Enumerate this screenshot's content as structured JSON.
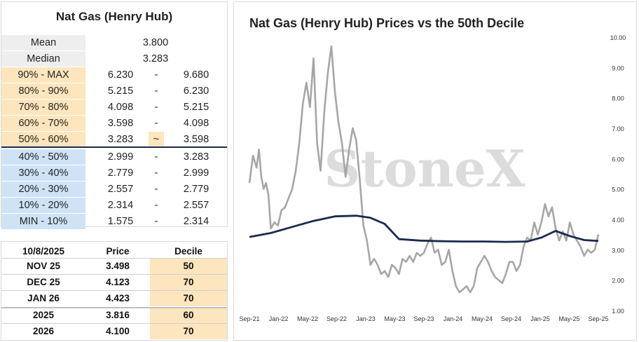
{
  "decile_table": {
    "title": "Nat Gas (Henry Hub)",
    "stats": [
      {
        "label": "Mean",
        "value": "3.800"
      },
      {
        "label": "Median",
        "value": "3.283"
      }
    ],
    "deciles": [
      {
        "label": "90% - MAX",
        "low": "6.230",
        "sep": "-",
        "high": "9.680",
        "zone": "orange"
      },
      {
        "label": "80% - 90%",
        "low": "5.215",
        "sep": "-",
        "high": "6.230",
        "zone": "orange"
      },
      {
        "label": "70% - 80%",
        "low": "4.098",
        "sep": "-",
        "high": "5.215",
        "zone": "orange"
      },
      {
        "label": "60% - 70%",
        "low": "3.598",
        "sep": "-",
        "high": "4.098",
        "zone": "orange"
      },
      {
        "label": "50% - 60%",
        "low": "3.283",
        "sep": "~",
        "high": "3.598",
        "zone": "orange",
        "current": true
      },
      {
        "label": "40% - 50%",
        "low": "2.999",
        "sep": "-",
        "high": "3.283",
        "zone": "blue"
      },
      {
        "label": "30% - 40%",
        "low": "2.779",
        "sep": "-",
        "high": "2.999",
        "zone": "blue"
      },
      {
        "label": "20% - 30%",
        "low": "2.557",
        "sep": "-",
        "high": "2.779",
        "zone": "blue"
      },
      {
        "label": "10% - 20%",
        "low": "2.314",
        "sep": "-",
        "high": "2.557",
        "zone": "blue"
      },
      {
        "label": "MIN - 10%",
        "low": "1.575",
        "sep": "-",
        "high": "2.314",
        "zone": "blue"
      }
    ]
  },
  "price_table": {
    "headers": [
      "10/8/2025",
      "Price",
      "Decile"
    ],
    "rows": [
      {
        "contract": "NOV 25",
        "price": "3.498",
        "decile": "50"
      },
      {
        "contract": "DEC 25",
        "price": "4.123",
        "decile": "70"
      },
      {
        "contract": "JAN 26",
        "price": "4.423",
        "decile": "70"
      },
      {
        "contract": "2025",
        "price": "3.816",
        "decile": "60"
      },
      {
        "contract": "2026",
        "price": "4.100",
        "decile": "70"
      }
    ]
  },
  "colors": {
    "orange_fill": "#fde5bd",
    "blue_fill": "#cfe3f6",
    "price_line": "#a6a6a6",
    "median_line": "#1a2b4c",
    "watermark": "#dcdcdc"
  },
  "chart_data": {
    "type": "line",
    "title": "Nat Gas (Henry Hub) Prices vs the 50th Decile",
    "watermark": "StoneX",
    "x_tick_labels": [
      "Sep-21",
      "Jan-22",
      "May-22",
      "Sep-22",
      "Jan-23",
      "May-23",
      "Sep-23",
      "Jan-24",
      "May-24",
      "Sep-24",
      "Jan-25",
      "May-25",
      "Sep-25"
    ],
    "x_range": [
      "2021-09",
      "2025-10"
    ],
    "y_tick_labels": [
      "1.00",
      "2.00",
      "3.00",
      "4.00",
      "5.00",
      "6.00",
      "7.00",
      "8.00",
      "9.00",
      "10.00"
    ],
    "ylim": [
      1.0,
      10.0
    ],
    "y_axis_side": "right",
    "grid": false,
    "series": [
      {
        "style": "price",
        "points": [
          [
            "2021-09",
            5.2
          ],
          [
            "2021-09",
            6.1
          ],
          [
            "2021-10",
            5.7
          ],
          [
            "2021-10",
            6.3
          ],
          [
            "2021-10",
            5.4
          ],
          [
            "2021-11",
            5.0
          ],
          [
            "2021-11",
            5.2
          ],
          [
            "2021-11",
            4.8
          ],
          [
            "2021-12",
            3.7
          ],
          [
            "2021-12",
            3.9
          ],
          [
            "2022-01",
            3.8
          ],
          [
            "2022-01",
            4.3
          ],
          [
            "2022-02",
            4.4
          ],
          [
            "2022-02",
            4.7
          ],
          [
            "2022-03",
            5.0
          ],
          [
            "2022-03",
            5.6
          ],
          [
            "2022-04",
            6.5
          ],
          [
            "2022-04",
            7.8
          ],
          [
            "2022-05",
            8.5
          ],
          [
            "2022-05",
            7.7
          ],
          [
            "2022-06",
            9.3
          ],
          [
            "2022-06",
            6.5
          ],
          [
            "2022-07",
            5.6
          ],
          [
            "2022-07",
            7.5
          ],
          [
            "2022-08",
            8.8
          ],
          [
            "2022-08",
            9.7
          ],
          [
            "2022-09",
            8.2
          ],
          [
            "2022-09",
            7.2
          ],
          [
            "2022-10",
            6.5
          ],
          [
            "2022-10",
            5.4
          ],
          [
            "2022-11",
            6.3
          ],
          [
            "2022-11",
            7.0
          ],
          [
            "2022-12",
            6.6
          ],
          [
            "2022-12",
            5.3
          ],
          [
            "2023-01",
            3.8
          ],
          [
            "2023-01",
            3.3
          ],
          [
            "2023-02",
            2.5
          ],
          [
            "2023-02",
            2.7
          ],
          [
            "2023-03",
            2.5
          ],
          [
            "2023-03",
            2.2
          ],
          [
            "2023-04",
            2.3
          ],
          [
            "2023-04",
            2.1
          ],
          [
            "2023-05",
            2.5
          ],
          [
            "2023-05",
            2.4
          ],
          [
            "2023-06",
            2.2
          ],
          [
            "2023-06",
            2.7
          ],
          [
            "2023-07",
            2.6
          ],
          [
            "2023-07",
            2.8
          ],
          [
            "2023-08",
            2.6
          ],
          [
            "2023-08",
            2.9
          ],
          [
            "2023-09",
            2.8
          ],
          [
            "2023-09",
            2.9
          ],
          [
            "2023-10",
            3.2
          ],
          [
            "2023-10",
            3.4
          ],
          [
            "2023-11",
            2.9
          ],
          [
            "2023-11",
            3.0
          ],
          [
            "2023-12",
            2.5
          ],
          [
            "2023-12",
            2.6
          ],
          [
            "2024-01",
            3.0
          ],
          [
            "2024-01",
            2.3
          ],
          [
            "2024-02",
            1.8
          ],
          [
            "2024-02",
            1.6
          ],
          [
            "2024-03",
            1.7
          ],
          [
            "2024-03",
            1.8
          ],
          [
            "2024-04",
            1.6
          ],
          [
            "2024-04",
            1.8
          ],
          [
            "2024-05",
            2.4
          ],
          [
            "2024-05",
            2.6
          ],
          [
            "2024-06",
            2.8
          ],
          [
            "2024-06",
            2.6
          ],
          [
            "2024-07",
            2.3
          ],
          [
            "2024-07",
            2.1
          ],
          [
            "2024-08",
            2.0
          ],
          [
            "2024-08",
            1.9
          ],
          [
            "2024-09",
            2.2
          ],
          [
            "2024-09",
            2.6
          ],
          [
            "2024-10",
            2.6
          ],
          [
            "2024-10",
            2.3
          ],
          [
            "2024-11",
            2.5
          ],
          [
            "2024-11",
            3.1
          ],
          [
            "2024-12",
            3.4
          ],
          [
            "2024-12",
            3.3
          ],
          [
            "2025-01",
            3.9
          ],
          [
            "2025-01",
            3.5
          ],
          [
            "2025-02",
            3.9
          ],
          [
            "2025-02",
            4.5
          ],
          [
            "2025-03",
            4.1
          ],
          [
            "2025-03",
            4.4
          ],
          [
            "2025-04",
            3.7
          ],
          [
            "2025-04",
            3.3
          ],
          [
            "2025-05",
            3.6
          ],
          [
            "2025-05",
            3.3
          ],
          [
            "2025-06",
            3.9
          ],
          [
            "2025-06",
            3.5
          ],
          [
            "2025-07",
            3.3
          ],
          [
            "2025-07",
            3.1
          ],
          [
            "2025-08",
            2.8
          ],
          [
            "2025-08",
            3.0
          ],
          [
            "2025-09",
            2.9
          ],
          [
            "2025-09",
            3.0
          ],
          [
            "2025-10",
            3.5
          ]
        ]
      },
      {
        "style": "median-50th-decile",
        "points": [
          [
            "2021-09",
            3.42
          ],
          [
            "2021-12",
            3.55
          ],
          [
            "2022-03",
            3.75
          ],
          [
            "2022-06",
            3.95
          ],
          [
            "2022-09",
            4.1
          ],
          [
            "2022-12",
            4.12
          ],
          [
            "2023-02",
            4.05
          ],
          [
            "2023-04",
            3.85
          ],
          [
            "2023-06",
            3.35
          ],
          [
            "2023-09",
            3.3
          ],
          [
            "2023-12",
            3.28
          ],
          [
            "2024-03",
            3.27
          ],
          [
            "2024-06",
            3.27
          ],
          [
            "2024-09",
            3.26
          ],
          [
            "2024-12",
            3.27
          ],
          [
            "2025-02",
            3.4
          ],
          [
            "2025-04",
            3.62
          ],
          [
            "2025-06",
            3.45
          ],
          [
            "2025-08",
            3.32
          ],
          [
            "2025-10",
            3.29
          ]
        ]
      }
    ]
  }
}
